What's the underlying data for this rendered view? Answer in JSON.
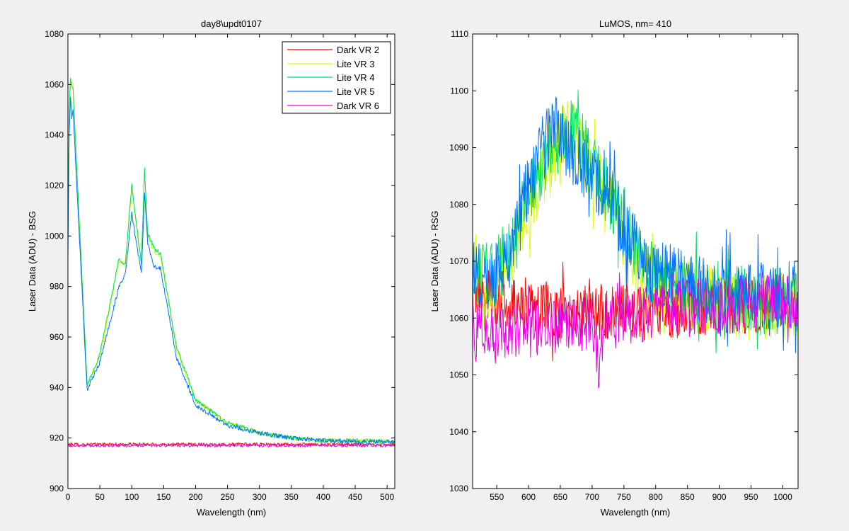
{
  "colors": {
    "figure_bg": "#f0f0f0",
    "axes_bg": "#ffffff",
    "Dark VR 2": "#ff0000",
    "Lite VR 3": "#d9ff00",
    "Lite VR 4": "#00e35d",
    "Lite VR 5": "#0071ff",
    "Dark VR 6": "#ea00e6"
  },
  "chart_data": [
    {
      "type": "line",
      "title": "day8\\updt0107",
      "xlabel": "Wavelength (nm)",
      "ylabel": "Laser Data (ADU) - BSG",
      "xlim": [
        0,
        512
      ],
      "ylim": [
        900,
        1080
      ],
      "xticks": [
        0,
        50,
        100,
        150,
        200,
        250,
        300,
        350,
        400,
        450,
        500
      ],
      "yticks": [
        900,
        920,
        940,
        960,
        980,
        1000,
        1020,
        1040,
        1060,
        1080
      ],
      "grid": false,
      "legend": {
        "position": "top-right",
        "entries": [
          "Dark VR 2",
          "Lite VR 3",
          "Lite VR 4",
          "Lite VR 5",
          "Dark VR 6"
        ]
      },
      "series": [
        {
          "name": "Dark VR 2",
          "x": [
            0,
            100,
            200,
            300,
            400,
            512
          ],
          "y": [
            917.5,
            917.5,
            917.5,
            917.5,
            917.5,
            917.5
          ]
        },
        {
          "name": "Lite VR 3",
          "x": [
            0,
            2,
            4,
            6,
            8,
            30,
            50,
            80,
            90,
            100,
            115,
            120,
            125,
            135,
            145,
            170,
            200,
            250,
            300,
            350,
            400,
            450,
            512
          ],
          "y": [
            1000,
            1045,
            1059,
            1061,
            1060,
            941,
            952,
            990,
            988,
            1019,
            988,
            1026,
            1000,
            994,
            992,
            955,
            935,
            926,
            922,
            920,
            919,
            919,
            918.5
          ]
        },
        {
          "name": "Lite VR 4",
          "x": [
            0,
            2,
            4,
            6,
            8,
            30,
            50,
            80,
            90,
            100,
            115,
            120,
            125,
            135,
            145,
            170,
            200,
            250,
            300,
            350,
            400,
            450,
            512
          ],
          "y": [
            1000,
            1050,
            1062,
            1060,
            1058,
            941,
            953,
            991,
            989,
            1020,
            989,
            1027,
            1001,
            995,
            993,
            956,
            935,
            926,
            922,
            920,
            919,
            919,
            918.5
          ]
        },
        {
          "name": "Lite VR 5",
          "x": [
            0,
            2,
            4,
            6,
            8,
            30,
            50,
            80,
            90,
            100,
            115,
            120,
            125,
            135,
            145,
            170,
            200,
            250,
            300,
            350,
            400,
            450,
            512
          ],
          "y": [
            991,
            1040,
            1055,
            1047,
            1050,
            939,
            950,
            980,
            985,
            1009,
            985,
            1017,
            997,
            988,
            987,
            952,
            933,
            925,
            922,
            920,
            919,
            918.5,
            918.5
          ]
        },
        {
          "name": "Dark VR 6",
          "x": [
            0,
            100,
            200,
            300,
            400,
            512
          ],
          "y": [
            917,
            917,
            917,
            917,
            917,
            917
          ]
        }
      ]
    },
    {
      "type": "line",
      "title": "LuMOS, nm= 410",
      "xlabel": "Wavelength (nm)",
      "ylabel": "Laser Data (ADU) - RSG",
      "xlim": [
        512,
        1024
      ],
      "ylim": [
        1030,
        1110
      ],
      "xticks": [
        550,
        600,
        650,
        700,
        750,
        800,
        850,
        900,
        950,
        1000
      ],
      "yticks": [
        1030,
        1040,
        1050,
        1060,
        1070,
        1080,
        1090,
        1100,
        1110
      ],
      "grid": false,
      "legend": null,
      "series": [
        {
          "name": "Dark VR 2",
          "x": [
            512,
            560,
            600,
            650,
            700,
            750,
            800,
            850,
            900,
            950,
            1000,
            1024
          ],
          "y": [
            1066,
            1063,
            1062,
            1061,
            1061,
            1061,
            1061,
            1062,
            1062,
            1062,
            1062,
            1062
          ]
        },
        {
          "name": "Lite VR 3",
          "x": [
            512,
            540,
            570,
            600,
            620,
            640,
            660,
            680,
            700,
            720,
            750,
            780,
            800,
            850,
            900,
            950,
            1000,
            1024
          ],
          "y": [
            1068,
            1066,
            1070,
            1080,
            1085,
            1088,
            1094,
            1090,
            1085,
            1082,
            1075,
            1068,
            1066,
            1064,
            1063,
            1062,
            1062,
            1062
          ]
        },
        {
          "name": "Lite VR 4",
          "x": [
            512,
            540,
            570,
            600,
            620,
            640,
            660,
            680,
            700,
            720,
            750,
            780,
            800,
            850,
            900,
            950,
            1000,
            1024
          ],
          "y": [
            1069,
            1067,
            1071,
            1082,
            1087,
            1090,
            1093,
            1091,
            1087,
            1083,
            1076,
            1069,
            1067,
            1065,
            1064,
            1063,
            1063,
            1063
          ]
        },
        {
          "name": "Lite VR 5",
          "x": [
            512,
            540,
            570,
            600,
            620,
            640,
            660,
            680,
            700,
            720,
            750,
            780,
            800,
            850,
            900,
            950,
            1000,
            1024
          ],
          "y": [
            1068,
            1066,
            1071,
            1083,
            1089,
            1094,
            1090,
            1088,
            1086,
            1082,
            1076,
            1070,
            1068,
            1066,
            1065,
            1064,
            1064,
            1064
          ]
        },
        {
          "name": "Dark VR 6",
          "x": [
            512,
            560,
            600,
            650,
            700,
            710,
            720,
            750,
            800,
            850,
            900,
            950,
            1000,
            1024
          ],
          "y": [
            1058,
            1058,
            1058,
            1059,
            1059,
            1052,
            1059,
            1060,
            1061,
            1062,
            1062,
            1063,
            1063,
            1063
          ]
        }
      ]
    }
  ]
}
